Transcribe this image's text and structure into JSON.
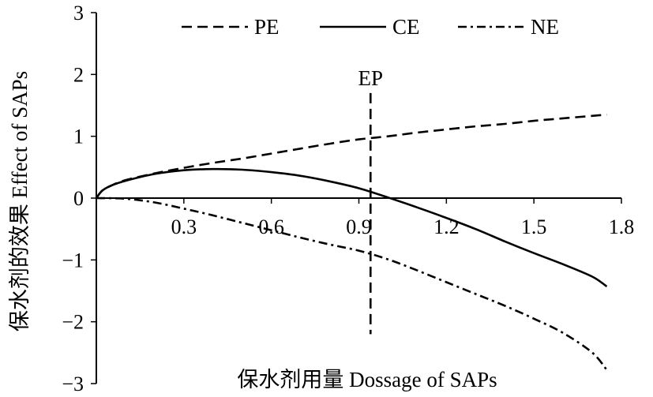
{
  "chart_data": {
    "type": "line",
    "xlabel": "保水剂用量 Dossage of SAPs",
    "ylabel": "保水剂的效果 Effect of SAPs",
    "xlim": [
      0,
      1.8
    ],
    "ylim": [
      -3,
      3
    ],
    "x_ticks": [
      "0.3",
      "0.6",
      "0.9",
      "1.2",
      "1.5",
      "1.8"
    ],
    "y_ticks": [
      "3",
      "2",
      "1",
      "0",
      "−1",
      "−2",
      "−3"
    ],
    "legend_position": "top",
    "series": [
      {
        "name": "PE",
        "style": "dashed",
        "color": "#000000",
        "points": [
          [
            0,
            0
          ],
          [
            0.02,
            0.12
          ],
          [
            0.05,
            0.2
          ],
          [
            0.1,
            0.29
          ],
          [
            0.2,
            0.4
          ],
          [
            0.3,
            0.49
          ],
          [
            0.4,
            0.57
          ],
          [
            0.5,
            0.64
          ],
          [
            0.6,
            0.72
          ],
          [
            0.7,
            0.8
          ],
          [
            0.8,
            0.88
          ],
          [
            0.9,
            0.95
          ],
          [
            1.0,
            1.0
          ],
          [
            1.1,
            1.06
          ],
          [
            1.2,
            1.11
          ],
          [
            1.3,
            1.16
          ],
          [
            1.4,
            1.2
          ],
          [
            1.5,
            1.25
          ],
          [
            1.6,
            1.29
          ],
          [
            1.7,
            1.33
          ],
          [
            1.75,
            1.35
          ]
        ]
      },
      {
        "name": "CE",
        "style": "solid",
        "color": "#000000",
        "points": [
          [
            0,
            0
          ],
          [
            0.02,
            0.12
          ],
          [
            0.05,
            0.2
          ],
          [
            0.1,
            0.28
          ],
          [
            0.2,
            0.39
          ],
          [
            0.3,
            0.45
          ],
          [
            0.4,
            0.47
          ],
          [
            0.5,
            0.46
          ],
          [
            0.6,
            0.42
          ],
          [
            0.7,
            0.36
          ],
          [
            0.8,
            0.27
          ],
          [
            0.9,
            0.16
          ],
          [
            1.0,
            0.01
          ],
          [
            1.1,
            -0.15
          ],
          [
            1.2,
            -0.32
          ],
          [
            1.3,
            -0.5
          ],
          [
            1.4,
            -0.7
          ],
          [
            1.5,
            -0.89
          ],
          [
            1.6,
            -1.07
          ],
          [
            1.7,
            -1.27
          ],
          [
            1.75,
            -1.43
          ]
        ]
      },
      {
        "name": "NE",
        "style": "dashdot",
        "color": "#000000",
        "points": [
          [
            0,
            0
          ],
          [
            0.1,
            -0.01
          ],
          [
            0.2,
            -0.07
          ],
          [
            0.3,
            -0.17
          ],
          [
            0.4,
            -0.28
          ],
          [
            0.5,
            -0.4
          ],
          [
            0.6,
            -0.52
          ],
          [
            0.7,
            -0.64
          ],
          [
            0.8,
            -0.75
          ],
          [
            0.9,
            -0.85
          ],
          [
            1.0,
            -0.99
          ],
          [
            1.1,
            -1.17
          ],
          [
            1.2,
            -1.36
          ],
          [
            1.3,
            -1.55
          ],
          [
            1.4,
            -1.74
          ],
          [
            1.5,
            -1.95
          ],
          [
            1.6,
            -2.18
          ],
          [
            1.7,
            -2.5
          ],
          [
            1.75,
            -2.78
          ]
        ]
      }
    ],
    "annotations": [
      {
        "label": "EP",
        "x": 0.94,
        "y_from": -2.2,
        "y_to": 1.7,
        "style": "dashed"
      }
    ]
  }
}
